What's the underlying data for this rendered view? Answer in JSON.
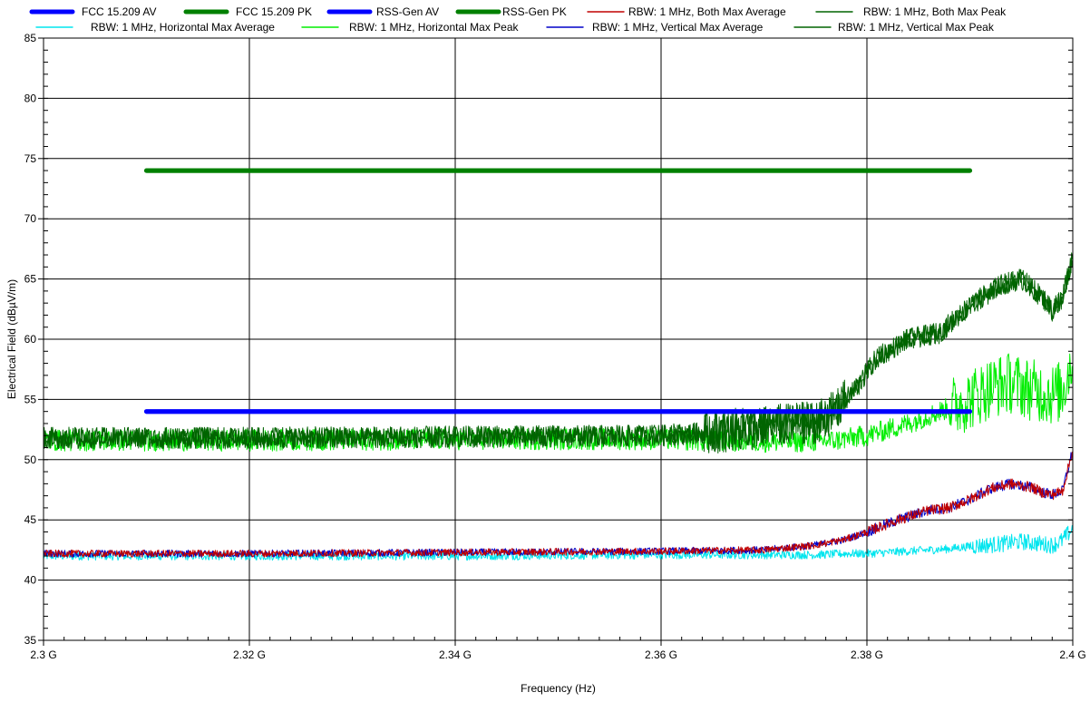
{
  "chart_data": {
    "type": "line",
    "title": "",
    "xlabel": "Frequency (Hz)",
    "ylabel": "Electrical Field (dBµV/m)",
    "xlim": [
      2300000000,
      2400000000
    ],
    "ylim": [
      35,
      85
    ],
    "grid": true,
    "legend_position": "top",
    "x_ticks": [
      {
        "value": 2300000000,
        "label": "2.3 G"
      },
      {
        "value": 2320000000,
        "label": "2.32 G"
      },
      {
        "value": 2340000000,
        "label": "2.34 G"
      },
      {
        "value": 2360000000,
        "label": "2.36 G"
      },
      {
        "value": 2380000000,
        "label": "2.38 G"
      },
      {
        "value": 2400000000,
        "label": "2.4 G"
      }
    ],
    "y_ticks": [
      35,
      40,
      45,
      50,
      55,
      60,
      65,
      70,
      75,
      80,
      85
    ],
    "series": [
      {
        "name": "FCC 15.209 AV",
        "color": "#0000ff",
        "width": 5,
        "legend_row": 0,
        "legend_col": 0,
        "x": [
          2310000000,
          2390000000
        ],
        "y": [
          54,
          54
        ]
      },
      {
        "name": "FCC 15.209 PK",
        "color": "#008000",
        "width": 5,
        "legend_row": 0,
        "legend_col": 1,
        "x": [
          2310000000,
          2390000000
        ],
        "y": [
          74,
          74
        ]
      },
      {
        "name": "RSS-Gen AV",
        "color": "#0000ff",
        "width": 5,
        "legend_row": 0,
        "legend_col": 2,
        "x": [
          2310000000,
          2390000000
        ],
        "y": [
          54,
          54
        ]
      },
      {
        "name": "RSS-Gen PK",
        "color": "#008000",
        "width": 5,
        "legend_row": 0,
        "legend_col": 3,
        "x": [
          2310000000,
          2390000000
        ],
        "y": [
          74,
          74
        ]
      },
      {
        "name": "RBW: 1 MHz, Both Max Average",
        "color": "#c00000",
        "width": 1,
        "legend_row": 0,
        "legend_col": 4,
        "x": [
          2300000000,
          2320000000,
          2340000000,
          2360000000,
          2370000000,
          2375000000,
          2378000000,
          2380000000,
          2383000000,
          2386000000,
          2388000000,
          2390000000,
          2392000000,
          2394000000,
          2396000000,
          2397000000,
          2398000000,
          2399000000,
          2400000000
        ],
        "y": [
          42.2,
          42.2,
          42.3,
          42.4,
          42.5,
          42.9,
          43.4,
          44.0,
          45.0,
          45.8,
          46.0,
          46.7,
          47.6,
          48.0,
          47.7,
          47.3,
          47.1,
          47.4,
          50.8
        ]
      },
      {
        "name": "RBW: 1 MHz, Both Max Peak",
        "color": "#006400",
        "width": 1,
        "legend_row": 0,
        "legend_col": 5,
        "x": [
          2300000000,
          2320000000,
          2340000000,
          2360000000,
          2365000000,
          2370000000,
          2375000000,
          2377000000,
          2379000000,
          2381000000,
          2384000000,
          2387000000,
          2390000000,
          2393000000,
          2395000000,
          2397000000,
          2398000000,
          2399000000,
          2400000000
        ],
        "y": [
          51.8,
          51.8,
          51.9,
          52.0,
          52.3,
          52.7,
          53.1,
          54.0,
          56.0,
          58.5,
          60.0,
          60.5,
          62.8,
          64.5,
          65.0,
          63.5,
          62.4,
          63.5,
          67.0
        ]
      },
      {
        "name": "RBW: 1 MHz, Horizontal Max Average",
        "color": "#00e5ee",
        "width": 1,
        "legend_row": 1,
        "legend_col": 0,
        "x": [
          2300000000,
          2320000000,
          2340000000,
          2360000000,
          2370000000,
          2375000000,
          2378000000,
          2380000000,
          2384000000,
          2388000000,
          2390000000,
          2393000000,
          2395000000,
          2397000000,
          2398000000,
          2399000000,
          2400000000
        ],
        "y": [
          42.0,
          42.0,
          42.0,
          42.1,
          42.1,
          42.1,
          42.2,
          42.2,
          42.4,
          42.6,
          42.8,
          43.0,
          43.2,
          43.0,
          42.9,
          43.3,
          44.3
        ]
      },
      {
        "name": "RBW: 1 MHz, Horizontal Max Peak",
        "color": "#00ee00",
        "width": 1,
        "legend_row": 1,
        "legend_col": 1,
        "x": [
          2300000000,
          2320000000,
          2340000000,
          2360000000,
          2365000000,
          2370000000,
          2374000000,
          2377000000,
          2380000000,
          2384000000,
          2388000000,
          2390000000,
          2392000000,
          2394000000,
          2396000000,
          2398000000,
          2399000000,
          2400000000
        ],
        "y": [
          51.6,
          51.6,
          51.7,
          51.7,
          51.6,
          51.5,
          51.5,
          51.6,
          52.0,
          53.0,
          54.3,
          55.0,
          56.0,
          56.4,
          55.8,
          55.4,
          55.7,
          58.5
        ]
      },
      {
        "name": "RBW: 1 MHz, Vertical Max Average",
        "color": "#0000c8",
        "width": 1,
        "legend_row": 1,
        "legend_col": 2,
        "x": [
          2300000000,
          2320000000,
          2340000000,
          2360000000,
          2370000000,
          2375000000,
          2378000000,
          2380000000,
          2383000000,
          2386000000,
          2388000000,
          2390000000,
          2392000000,
          2394000000,
          2396000000,
          2397000000,
          2398000000,
          2399000000,
          2400000000
        ],
        "y": [
          42.2,
          42.2,
          42.3,
          42.4,
          42.5,
          42.9,
          43.4,
          44.0,
          45.0,
          45.8,
          46.0,
          46.7,
          47.6,
          48.0,
          47.7,
          47.3,
          47.1,
          47.4,
          50.8
        ]
      },
      {
        "name": "RBW: 1 MHz, Vertical Max Peak",
        "color": "#006400",
        "width": 1,
        "legend_row": 1,
        "legend_col": 3,
        "x": [
          2300000000,
          2320000000,
          2340000000,
          2360000000,
          2365000000,
          2370000000,
          2375000000,
          2377000000,
          2379000000,
          2381000000,
          2384000000,
          2387000000,
          2390000000,
          2393000000,
          2395000000,
          2397000000,
          2398000000,
          2399000000,
          2400000000
        ],
        "y": [
          51.8,
          51.8,
          51.9,
          52.0,
          52.3,
          52.7,
          53.1,
          54.0,
          56.0,
          58.5,
          60.0,
          60.5,
          62.8,
          64.5,
          65.0,
          63.5,
          62.4,
          63.5,
          67.0
        ]
      }
    ]
  }
}
